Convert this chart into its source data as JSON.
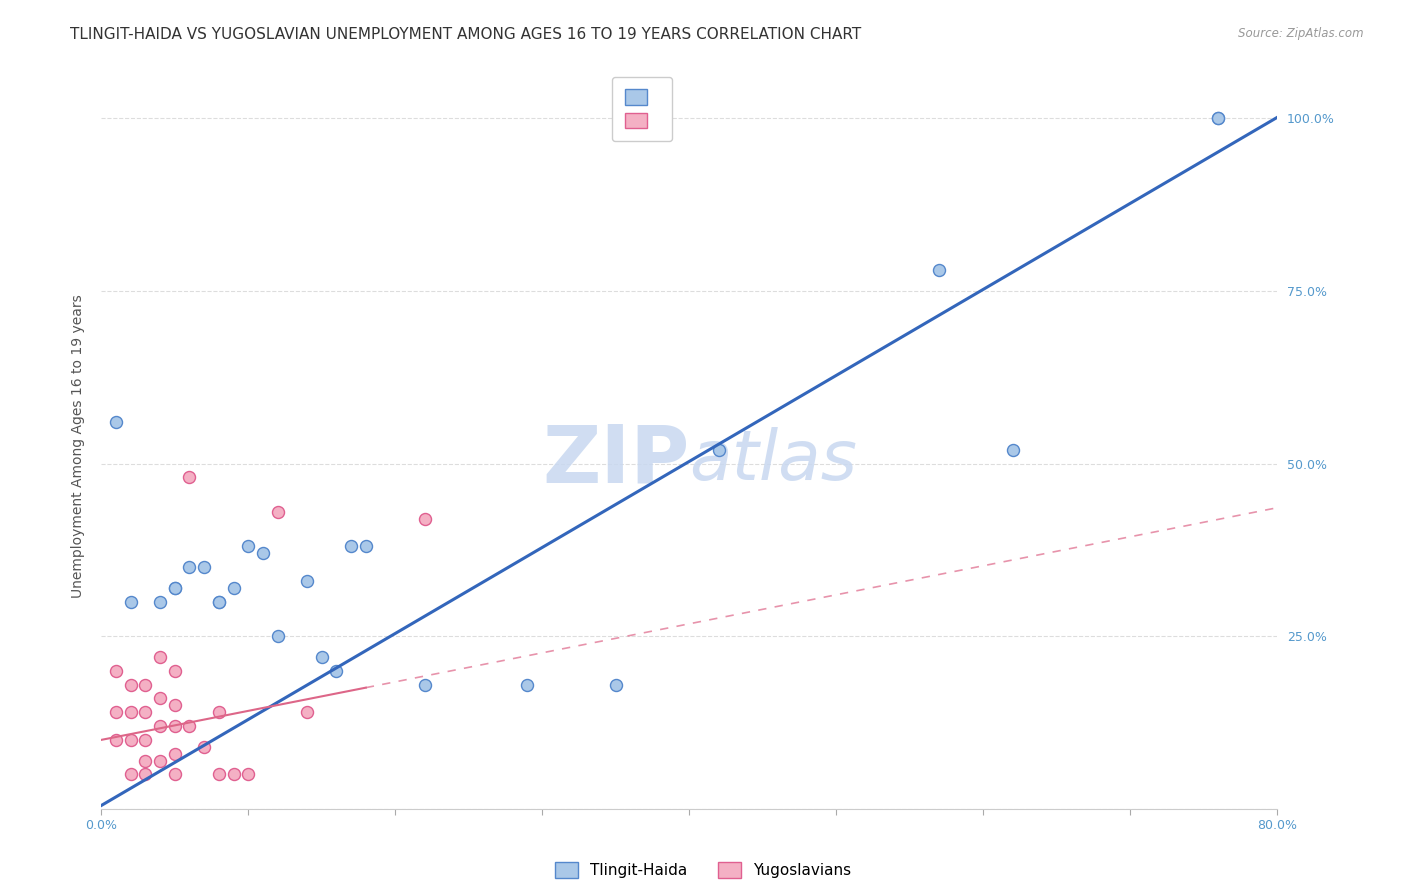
{
  "title": "TLINGIT-HAIDA VS YUGOSLAVIAN UNEMPLOYMENT AMONG AGES 16 TO 19 YEARS CORRELATION CHART",
  "source_text": "Source: ZipAtlas.com",
  "ylabel": "Unemployment Among Ages 16 to 19 years",
  "xlabel": "",
  "xlim": [
    0.0,
    0.8
  ],
  "ylim": [
    0.0,
    1.05
  ],
  "xticks": [
    0.0,
    0.1,
    0.2,
    0.3,
    0.4,
    0.5,
    0.6,
    0.7,
    0.8
  ],
  "xticklabels": [
    "0.0%",
    "",
    "",
    "",
    "",
    "",
    "",
    "",
    "80.0%"
  ],
  "ytick_positions": [
    0.0,
    0.25,
    0.5,
    0.75,
    1.0
  ],
  "ytick_labels": [
    "",
    "25.0%",
    "50.0%",
    "75.0%",
    "100.0%"
  ],
  "tlingit_x": [
    0.01,
    0.02,
    0.04,
    0.05,
    0.05,
    0.06,
    0.07,
    0.08,
    0.08,
    0.09,
    0.1,
    0.11,
    0.12,
    0.14,
    0.15,
    0.16,
    0.17,
    0.18,
    0.22,
    0.29,
    0.35,
    0.42,
    0.57,
    0.62,
    0.76,
    0.76
  ],
  "tlingit_y": [
    0.56,
    0.3,
    0.3,
    0.32,
    0.32,
    0.35,
    0.35,
    0.3,
    0.3,
    0.32,
    0.38,
    0.37,
    0.25,
    0.33,
    0.22,
    0.2,
    0.38,
    0.38,
    0.18,
    0.18,
    0.18,
    0.52,
    0.78,
    0.52,
    1.0,
    1.0
  ],
  "yugoslav_x": [
    0.01,
    0.01,
    0.01,
    0.02,
    0.02,
    0.02,
    0.02,
    0.03,
    0.03,
    0.03,
    0.03,
    0.03,
    0.04,
    0.04,
    0.04,
    0.04,
    0.05,
    0.05,
    0.05,
    0.05,
    0.05,
    0.06,
    0.06,
    0.07,
    0.08,
    0.08,
    0.09,
    0.1,
    0.12,
    0.14,
    0.22
  ],
  "yugoslav_y": [
    0.2,
    0.14,
    0.1,
    0.18,
    0.14,
    0.1,
    0.05,
    0.18,
    0.14,
    0.1,
    0.07,
    0.05,
    0.22,
    0.16,
    0.12,
    0.07,
    0.2,
    0.15,
    0.12,
    0.08,
    0.05,
    0.48,
    0.12,
    0.09,
    0.14,
    0.05,
    0.05,
    0.05,
    0.43,
    0.14,
    0.42
  ],
  "tlingit_color": "#aac8e8",
  "tlingit_edge_color": "#5588cc",
  "yugoslav_color": "#f4b0c4",
  "yugoslav_edge_color": "#e06090",
  "tlingit_line_color": "#3366bb",
  "yugoslav_line_color": "#dd6688",
  "tlingit_line_intercept": 0.005,
  "tlingit_line_slope": 1.245,
  "yugoslav_line_intercept": 0.1,
  "yugoslav_line_slope": 0.42,
  "background_color": "#ffffff",
  "grid_color": "#dddddd",
  "title_fontsize": 11,
  "axis_label_fontsize": 10,
  "tick_fontsize": 9,
  "marker_size": 75
}
